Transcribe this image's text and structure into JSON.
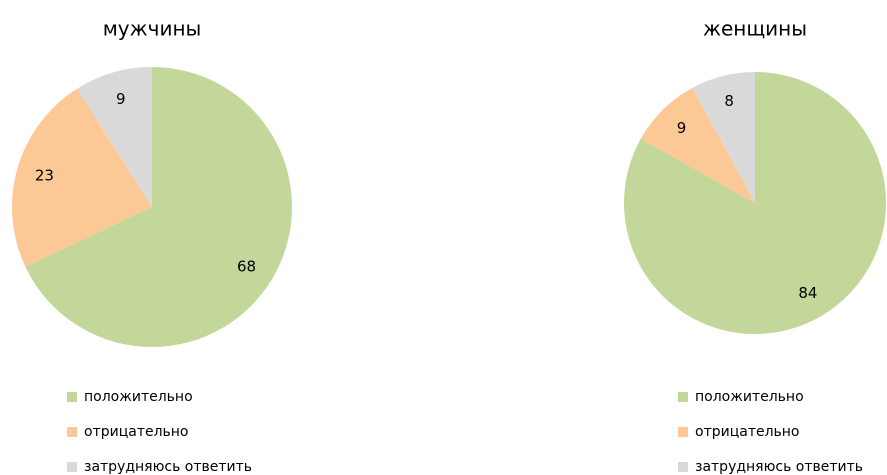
{
  "chart_data": [
    {
      "type": "pie",
      "title": "мужчины",
      "categories": [
        "положительно",
        "отрицательно",
        "затрудняюсь ответить"
      ],
      "values": [
        68,
        23,
        9
      ],
      "colors": [
        "#c4d79b",
        "#fcc996",
        "#d9d9d9"
      ],
      "legend": "bottom"
    },
    {
      "type": "pie",
      "title": "женщины",
      "categories": [
        "положительно",
        "отрицательно",
        "затрудняюсь ответить"
      ],
      "values": [
        84,
        9,
        8
      ],
      "colors": [
        "#c4d79b",
        "#fcc996",
        "#d9d9d9"
      ],
      "legend": "bottom"
    }
  ]
}
